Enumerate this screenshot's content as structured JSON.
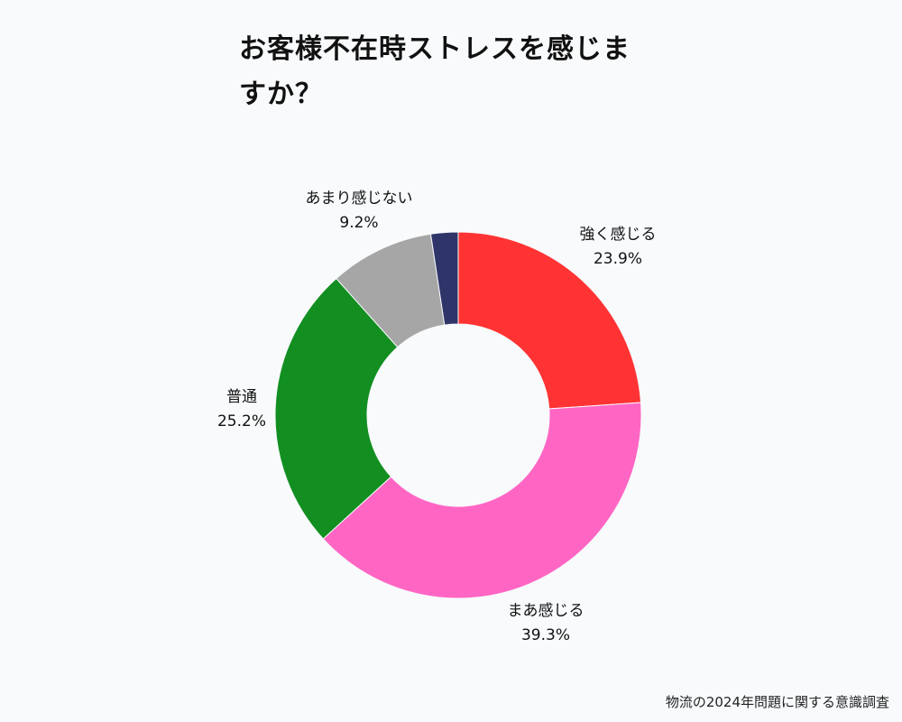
{
  "title": "お客様不在時ストレスを感じま\nすか？",
  "source": "物流の2024年問題に関する意識調査",
  "chart_data": {
    "type": "pie",
    "donut": true,
    "slices": [
      {
        "label": "強く感じる",
        "value": 23.9,
        "value_label": "23.9%",
        "color": "#ff3333"
      },
      {
        "label": "まあ感じる",
        "value": 39.3,
        "value_label": "39.3%",
        "color": "#ff66c4"
      },
      {
        "label": "普通",
        "value": 25.2,
        "value_label": "25.2%",
        "color": "#128f20"
      },
      {
        "label": "あまり感じない",
        "value": 9.2,
        "value_label": "9.2%",
        "color": "#a6a6a6"
      },
      {
        "label": "",
        "value": 2.4,
        "value_label": "",
        "color": "#2f3568"
      }
    ]
  }
}
